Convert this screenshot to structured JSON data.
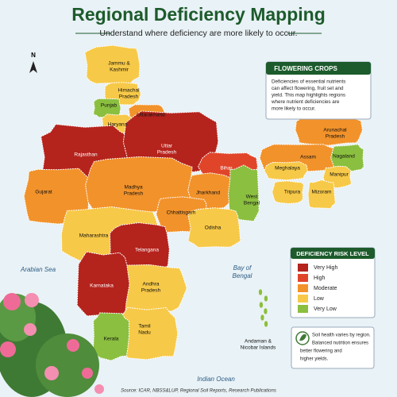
{
  "header": {
    "title": "Regional Deficiency Mapping",
    "subtitle": "Understand where deficiency are more likely to occur."
  },
  "compass": "N",
  "info_box": {
    "title": "FLOWERING CROPS",
    "lines": [
      "Deficiencies of essential nutrients",
      "can affect flowering, fruit set and",
      "yield. This map highlights regions",
      "where nutrient deficiencies are",
      "more likely to occur."
    ]
  },
  "legend": {
    "title": "DEFICIENCY RISK LEVEL",
    "items": [
      {
        "label": "Very High",
        "color": "#b5231d"
      },
      {
        "label": "High",
        "color": "#e0452a"
      },
      {
        "label": "Moderate",
        "color": "#f2922a"
      },
      {
        "label": "Low",
        "color": "#f7c948"
      },
      {
        "label": "Very Low",
        "color": "#8bbf3f"
      }
    ]
  },
  "note": {
    "lines": [
      "Soil health varies by region.",
      "Balanced nutrition ensures",
      "better flowering and",
      "higher yields."
    ]
  },
  "seas": {
    "arabian": "Arabian Sea",
    "bay": [
      "Bay of",
      "Bengal"
    ],
    "indian": "Indian Ocean"
  },
  "states": [
    {
      "lines": [
        "Jammu &",
        "Kashmir"
      ],
      "risk": 3
    },
    {
      "lines": [
        "Himachal",
        "Pradesh"
      ],
      "risk": 3
    },
    {
      "lines": [
        "Punjab"
      ],
      "risk": 4
    },
    {
      "lines": [
        "Uttarakhand"
      ],
      "risk": 2
    },
    {
      "lines": [
        "Haryana"
      ],
      "risk": 3
    },
    {
      "lines": [
        "Rajasthan"
      ],
      "risk": 0
    },
    {
      "lines": [
        "Uttar",
        "Pradesh"
      ],
      "risk": 0
    },
    {
      "lines": [
        "Bihar"
      ],
      "risk": 1
    },
    {
      "lines": [
        "Gujarat"
      ],
      "risk": 2
    },
    {
      "lines": [
        "Madhya",
        "Pradesh"
      ],
      "risk": 2
    },
    {
      "lines": [
        "Jharkhand"
      ],
      "risk": 2
    },
    {
      "lines": [
        "West",
        "Bengal"
      ],
      "risk": 4
    },
    {
      "lines": [
        "Chhattisgarh"
      ],
      "risk": 2
    },
    {
      "lines": [
        "Maharashtra"
      ],
      "risk": 3
    },
    {
      "lines": [
        "Odisha"
      ],
      "risk": 3
    },
    {
      "lines": [
        "Telangana"
      ],
      "risk": 0
    },
    {
      "lines": [
        "Andhra",
        "Pradesh"
      ],
      "risk": 3
    },
    {
      "lines": [
        "Karnataka"
      ],
      "risk": 0
    },
    {
      "lines": [
        "Tamil",
        "Nadu"
      ],
      "risk": 3
    },
    {
      "lines": [
        "Kerala"
      ],
      "risk": 4
    },
    {
      "lines": [
        "Arunachal",
        "Pradesh"
      ],
      "risk": 2
    },
    {
      "lines": [
        "Assam"
      ],
      "risk": 2
    },
    {
      "lines": [
        "Meghalaya"
      ],
      "risk": 3
    },
    {
      "lines": [
        "Nagaland"
      ],
      "risk": 4
    },
    {
      "lines": [
        "Manipur"
      ],
      "risk": 3
    },
    {
      "lines": [
        "Tripura"
      ],
      "risk": 3
    },
    {
      "lines": [
        "Mizoram"
      ],
      "risk": 3
    },
    {
      "lines": [
        "Andaman &",
        "Nicobar Islands"
      ],
      "risk": 4
    }
  ],
  "source": "Source: ICAR, NBSS&LUP, Regional Soil Reports, Research Publications"
}
